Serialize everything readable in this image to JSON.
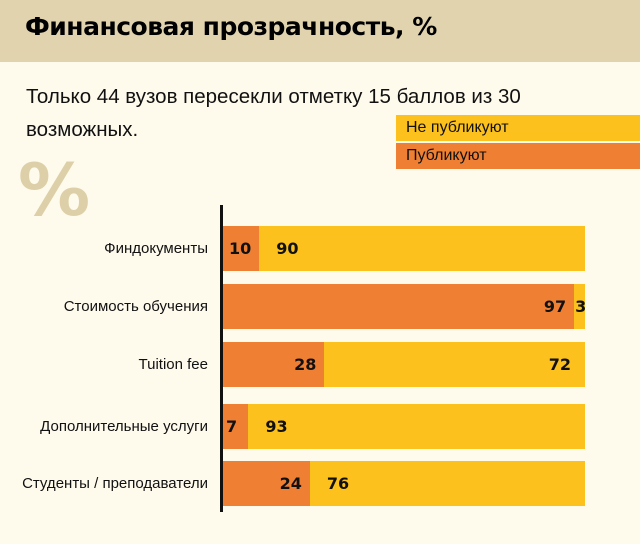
{
  "header": {
    "title": "Финансовая прозрачность, %"
  },
  "subtitle": "Только 44 вузов пересекли отметку 15 баллов из 30 возможных.",
  "watermark": "%",
  "colors": {
    "not_publish": "#fcc11c",
    "publish": "#ef7f33",
    "header_bg": "#e0d3ae",
    "background": "#fefaec"
  },
  "chart_data": {
    "type": "bar",
    "orientation": "horizontal",
    "stacked": true,
    "title": "Финансовая прозрачность, %",
    "categories": [
      "Финдокументы",
      "Стоимость обучения",
      "Tuition fee",
      "Дополнительные услуги",
      "Студенты / преподаватели"
    ],
    "series": [
      {
        "name": "Публикуют",
        "values": [
          10,
          97,
          28,
          7,
          24
        ]
      },
      {
        "name": "Не публикуют",
        "values": [
          90,
          3,
          72,
          93,
          76
        ]
      }
    ],
    "legend": [
      "Не публикуют",
      "Публикуют"
    ],
    "legend_position": "top-right",
    "xlim": [
      0,
      100
    ],
    "grid": false
  }
}
